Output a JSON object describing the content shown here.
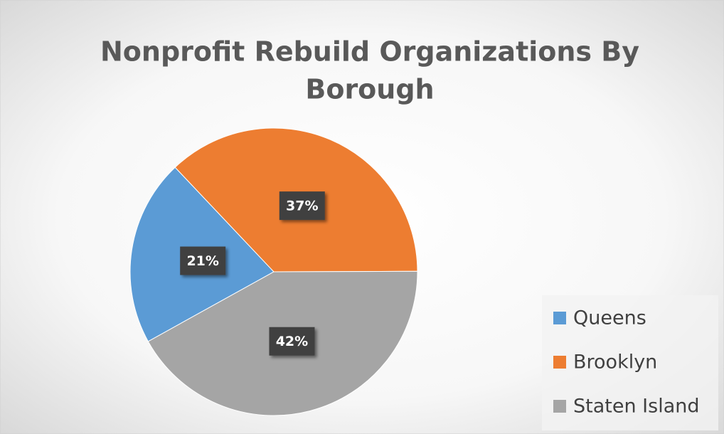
{
  "chart_data": {
    "type": "pie",
    "title": [
      "Nonprofit Rebuild Organizations By",
      "Borough"
    ],
    "categories": [
      "Queens",
      "Brooklyn",
      "Staten Island"
    ],
    "values": [
      21,
      37,
      42
    ],
    "value_labels": [
      "21%",
      "37%",
      "42%"
    ],
    "colors": [
      "#5b9bd5",
      "#ed7d31",
      "#a5a5a5"
    ],
    "legend": "right"
  }
}
